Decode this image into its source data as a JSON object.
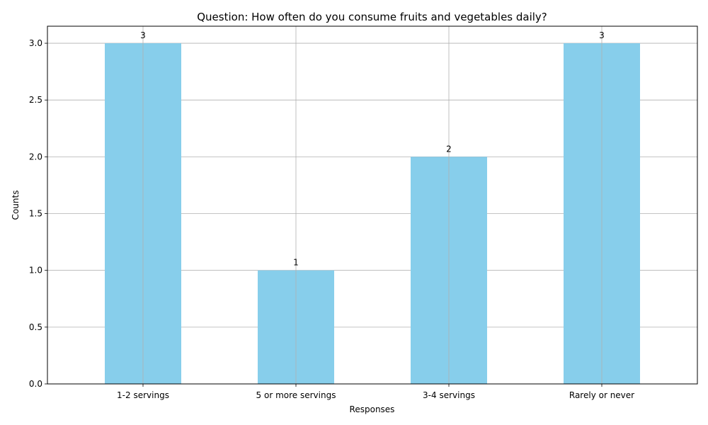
{
  "chart_data": {
    "type": "bar",
    "title": "Question: How often do you consume fruits and vegetables daily?",
    "xlabel": "Responses",
    "ylabel": "Counts",
    "categories": [
      "1-2 servings",
      "5 or more servings",
      "3-4 servings",
      "Rarely or never"
    ],
    "values": [
      3,
      1,
      2,
      3
    ],
    "data_labels": [
      "3",
      "1",
      "2",
      "3"
    ],
    "ylim": [
      0,
      3.15
    ],
    "yticks": [
      0.0,
      0.5,
      1.0,
      1.5,
      2.0,
      2.5,
      3.0
    ],
    "ytick_labels": [
      "0.0",
      "0.5",
      "1.0",
      "1.5",
      "2.0",
      "2.5",
      "3.0"
    ],
    "grid": true,
    "bar_color": "#87CEEB",
    "grid_color": "#b0b0b0"
  }
}
